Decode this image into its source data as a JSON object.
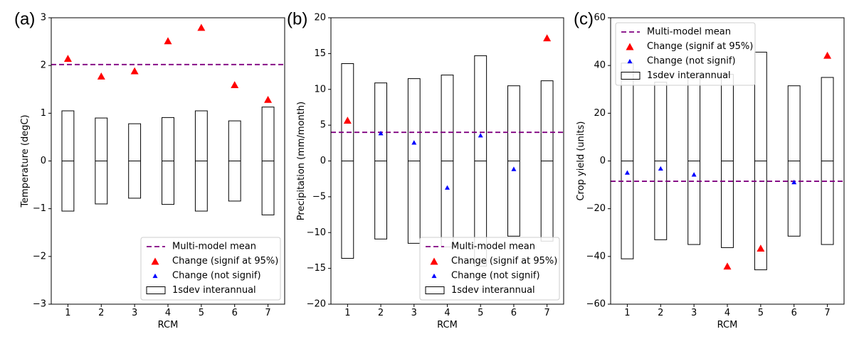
{
  "chart_data": [
    {
      "type": "scatter",
      "panel_label": "(a)",
      "xlabel": "RCM",
      "ylabel": "Temperature (degC)",
      "x": [
        1,
        2,
        3,
        4,
        5,
        6,
        7
      ],
      "xlim": [
        0.5,
        7.5
      ],
      "ylim": [
        -3,
        3
      ],
      "yticks": [
        -3,
        -2,
        -1,
        0,
        1,
        2,
        3
      ],
      "multi_model_mean": 2.02,
      "sd_interannual": [
        1.05,
        0.9,
        0.78,
        0.91,
        1.05,
        0.84,
        1.13
      ],
      "change_signif": [
        {
          "x": 1,
          "y": 2.15
        },
        {
          "x": 2,
          "y": 1.78
        },
        {
          "x": 3,
          "y": 1.89
        },
        {
          "x": 4,
          "y": 2.52
        },
        {
          "x": 5,
          "y": 2.8
        },
        {
          "x": 6,
          "y": 1.6
        },
        {
          "x": 7,
          "y": 1.29
        }
      ],
      "change_not_signif": [],
      "legend_loc": "lower-right"
    },
    {
      "type": "scatter",
      "panel_label": "(b)",
      "xlabel": "RCM",
      "ylabel": "Precipitation (mm/month)",
      "x": [
        1,
        2,
        3,
        4,
        5,
        6,
        7
      ],
      "xlim": [
        0.5,
        7.5
      ],
      "ylim": [
        -20,
        20
      ],
      "yticks": [
        -20,
        -15,
        -10,
        -5,
        0,
        5,
        10,
        15,
        20
      ],
      "multi_model_mean": 4.0,
      "sd_interannual": [
        13.6,
        10.9,
        11.5,
        12.0,
        14.7,
        10.5,
        11.2
      ],
      "change_signif": [
        {
          "x": 1,
          "y": 5.7
        },
        {
          "x": 7,
          "y": 17.2
        }
      ],
      "change_not_signif": [
        {
          "x": 2,
          "y": 3.9
        },
        {
          "x": 3,
          "y": 2.6
        },
        {
          "x": 4,
          "y": -3.7
        },
        {
          "x": 5,
          "y": 3.6
        },
        {
          "x": 6,
          "y": -1.1
        }
      ],
      "legend_loc": "lower-right"
    },
    {
      "type": "scatter",
      "panel_label": "(c)",
      "xlabel": "RCM",
      "ylabel": "Crop yield (units)",
      "x": [
        1,
        2,
        3,
        4,
        5,
        6,
        7
      ],
      "xlim": [
        0.5,
        7.5
      ],
      "ylim": [
        -60,
        60
      ],
      "yticks": [
        -60,
        -40,
        -20,
        0,
        20,
        40,
        60
      ],
      "multi_model_mean": -8.5,
      "sd_interannual": [
        41,
        33,
        35,
        36.3,
        45.6,
        31.5,
        35
      ],
      "change_signif": [
        {
          "x": 4,
          "y": -44
        },
        {
          "x": 5,
          "y": -36.5
        },
        {
          "x": 7,
          "y": 44.3
        }
      ],
      "change_not_signif": [
        {
          "x": 1,
          "y": -4.8
        },
        {
          "x": 2,
          "y": -3.1
        },
        {
          "x": 3,
          "y": -5.6
        },
        {
          "x": 6,
          "y": -8.8
        }
      ],
      "legend_loc": "upper-left"
    }
  ],
  "legend": {
    "mean": "Multi-model mean",
    "signif": "Change (signif at 95%)",
    "notsignif": "Change (not signif)",
    "box": "1sdev interannual"
  },
  "colors": {
    "mean_line": "#800080",
    "signif": "#ff0000",
    "not_signif": "#0000ff",
    "box_edge": "#000000"
  }
}
